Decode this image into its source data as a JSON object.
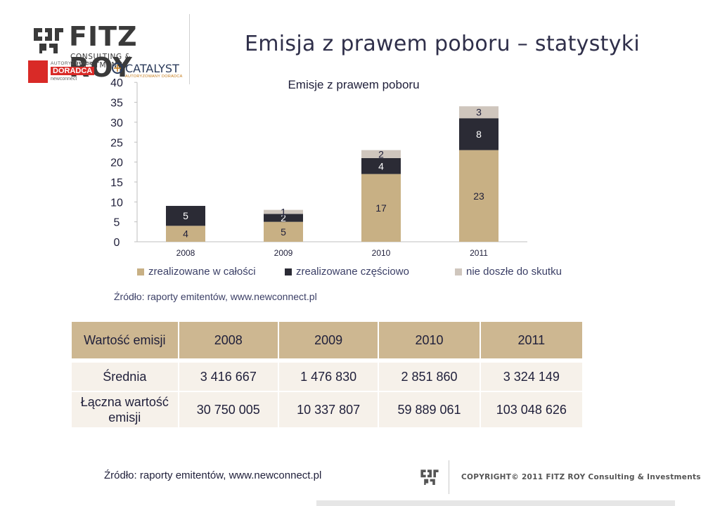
{
  "branding": {
    "company_name": "FITZ ROY",
    "company_sub": "CONSULTING & INVESTMENTS",
    "doradca_top": "AUTORYZOWANY",
    "doradca_main": "DORADCA",
    "doradca_bottom": "newconnect",
    "catalyst_name": "CATALYST",
    "catalyst_sub": "AUTORYZOWANY DORADCA"
  },
  "title": "Emisja z prawem poboru – statystyki",
  "colors": {
    "full": "#c8b084",
    "partial": "#2b2b35",
    "failed": "#cfc6bd",
    "table_header": "#cdb791",
    "table_body": "#f6f1ea"
  },
  "chart_data": {
    "type": "bar",
    "stacked": true,
    "title": "Emisje z prawem poboru",
    "categories": [
      "2008",
      "2009",
      "2010",
      "2011"
    ],
    "series": [
      {
        "name": "zrealizowane w całości",
        "values": [
          4,
          5,
          17,
          23
        ]
      },
      {
        "name": "zrealizowane częściowo",
        "values": [
          5,
          2,
          4,
          8
        ]
      },
      {
        "name": "nie doszłe do skutku",
        "values": [
          null,
          1,
          2,
          3
        ]
      }
    ],
    "yticks": [
      "0",
      "5",
      "10",
      "15",
      "20",
      "25",
      "30",
      "35",
      "40"
    ],
    "ylim": [
      0,
      40
    ],
    "legend_position": "bottom",
    "grid": false
  },
  "chart_source": "Źródło: raporty emitentów, www.newconnect.pl",
  "table": {
    "header": [
      "Wartość emisji",
      "2008",
      "2009",
      "2010",
      "2011"
    ],
    "rows": [
      {
        "label": "Średnia",
        "values": [
          "3 416 667",
          "1 476 830",
          "2 851 860",
          "3 324 149"
        ]
      },
      {
        "label_line1": "Łączna wartość",
        "label_line2": "emisji",
        "values": [
          "30 750 005",
          "10 337 807",
          "59 889 061",
          "103 048 626"
        ]
      }
    ]
  },
  "footer": {
    "source": "Źródło: raporty emitentów, www.newconnect.pl",
    "copyright": "COPYRIGHT© 2011 FITZ ROY Consulting & Investments"
  }
}
